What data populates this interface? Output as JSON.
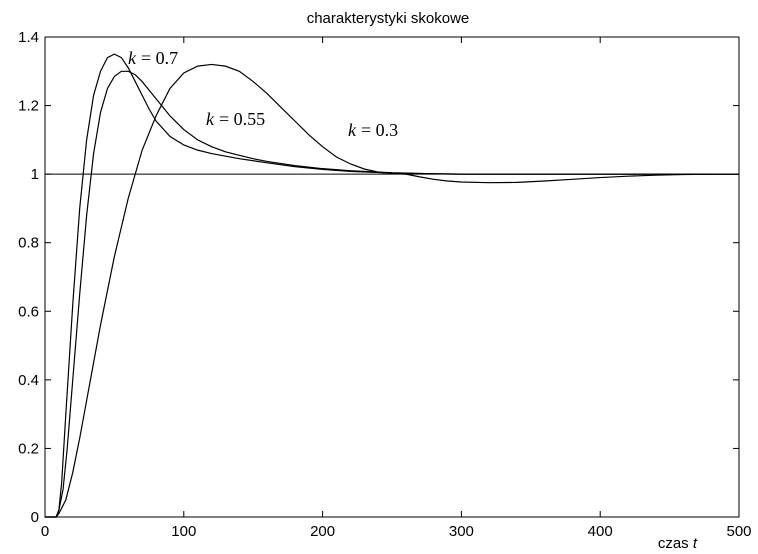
{
  "chart_data": {
    "type": "line",
    "title": "charakterystyki skokowe",
    "xlabel": {
      "prefix": "czas ",
      "var": "t"
    },
    "ylabel": "",
    "xlim": [
      0,
      500
    ],
    "ylim": [
      0,
      1.4
    ],
    "xticks": [
      0,
      100,
      200,
      300,
      400,
      500
    ],
    "yticks": [
      0,
      0.2,
      0.4,
      0.6,
      0.8,
      1,
      1.2,
      1.4
    ],
    "xtick_labels": [
      "0",
      "100",
      "200",
      "300",
      "400",
      "500"
    ],
    "ytick_labels": [
      "0",
      "0.2",
      "0.4",
      "0.6",
      "0.8",
      "1",
      "1.2",
      "1.4"
    ],
    "grid": false,
    "reference_line": {
      "y": 1
    },
    "series": [
      {
        "name": "k = 0.7",
        "label_var": "k",
        "label_value": "= 0.7",
        "x": [
          0,
          8,
          10,
          12,
          15,
          20,
          25,
          30,
          35,
          40,
          45,
          50,
          55,
          60,
          65,
          70,
          75,
          80,
          90,
          100,
          110,
          120,
          140,
          160,
          180,
          200,
          220,
          250,
          300,
          350,
          400,
          450,
          500
        ],
        "y": [
          0,
          0,
          0.02,
          0.1,
          0.3,
          0.62,
          0.9,
          1.1,
          1.23,
          1.3,
          1.34,
          1.35,
          1.34,
          1.31,
          1.27,
          1.23,
          1.19,
          1.155,
          1.11,
          1.085,
          1.07,
          1.06,
          1.045,
          1.033,
          1.022,
          1.014,
          1.008,
          1.003,
          1.0,
          1.0,
          1.0,
          1.0,
          1.0
        ]
      },
      {
        "name": "k = 0.55",
        "label_var": "k",
        "label_value": "= 0.55",
        "x": [
          0,
          8,
          10,
          13,
          16,
          20,
          25,
          30,
          35,
          40,
          45,
          50,
          55,
          60,
          65,
          70,
          75,
          80,
          85,
          90,
          95,
          100,
          110,
          120,
          130,
          140,
          150,
          160,
          180,
          200,
          220,
          250,
          280,
          300,
          350,
          400,
          450,
          500
        ],
        "y": [
          0,
          0,
          0.02,
          0.08,
          0.2,
          0.4,
          0.65,
          0.88,
          1.06,
          1.18,
          1.25,
          1.285,
          1.3,
          1.3,
          1.29,
          1.27,
          1.245,
          1.22,
          1.195,
          1.17,
          1.15,
          1.13,
          1.1,
          1.08,
          1.065,
          1.055,
          1.045,
          1.037,
          1.025,
          1.016,
          1.01,
          1.004,
          1.001,
          1.0,
          1.0,
          1.0,
          1.0,
          1.0
        ]
      },
      {
        "name": "k = 0.3",
        "label_var": "k",
        "label_value": "= 0.3",
        "x": [
          0,
          8,
          10,
          15,
          20,
          25,
          30,
          40,
          50,
          60,
          70,
          80,
          90,
          100,
          110,
          120,
          130,
          140,
          150,
          160,
          170,
          180,
          190,
          200,
          210,
          220,
          230,
          240,
          250,
          260,
          270,
          280,
          290,
          300,
          320,
          340,
          360,
          380,
          400,
          420,
          440,
          460,
          480,
          500
        ],
        "y": [
          0,
          0,
          0.01,
          0.05,
          0.13,
          0.23,
          0.34,
          0.56,
          0.76,
          0.93,
          1.07,
          1.17,
          1.25,
          1.295,
          1.315,
          1.32,
          1.315,
          1.3,
          1.27,
          1.235,
          1.195,
          1.155,
          1.115,
          1.08,
          1.05,
          1.03,
          1.015,
          1.006,
          1.002,
          1.0,
          0.992,
          0.985,
          0.98,
          0.977,
          0.975,
          0.976,
          0.98,
          0.985,
          0.99,
          0.994,
          0.997,
          0.999,
          1.0,
          1.0
        ]
      }
    ]
  }
}
